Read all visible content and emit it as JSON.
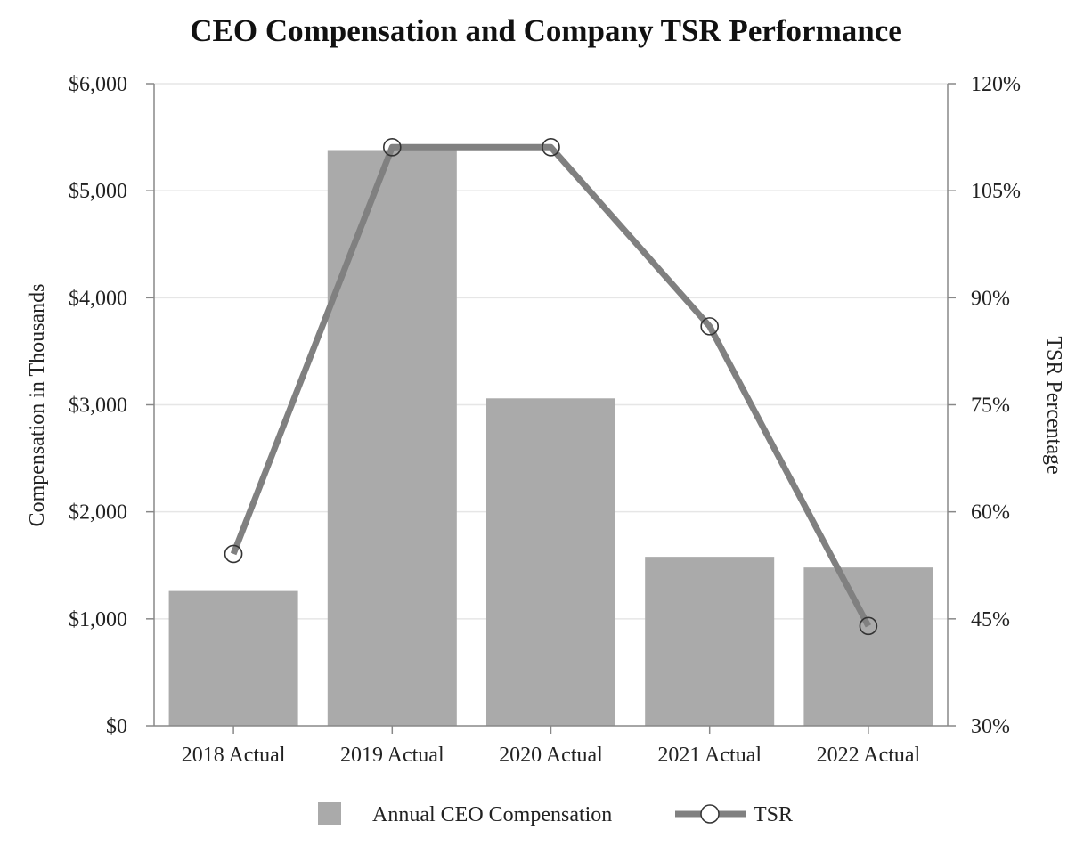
{
  "chart_data": {
    "type": "bar",
    "title": "CEO Compensation and Company TSR Performance",
    "categories": [
      "2018 Actual",
      "2019 Actual",
      "2020 Actual",
      "2021 Actual",
      "2022 Actual"
    ],
    "ylabel": "Compensation in Thousands",
    "y2label": "TSR Percentage",
    "ylim": [
      0,
      6000
    ],
    "y2lim": [
      30,
      120
    ],
    "yticks": [
      "$0",
      "$1,000",
      "$2,000",
      "$3,000",
      "$4,000",
      "$5,000",
      "$6,000"
    ],
    "ytick_values": [
      0,
      1000,
      2000,
      3000,
      4000,
      5000,
      6000
    ],
    "y2ticks": [
      "30%",
      "45%",
      "60%",
      "75%",
      "90%",
      "105%",
      "120%"
    ],
    "y2tick_values": [
      30,
      45,
      60,
      75,
      90,
      105,
      120
    ],
    "grid": true,
    "legend_position": "bottom",
    "series": [
      {
        "name": "Annual CEO Compensation",
        "type": "bar",
        "axis": "left",
        "color": "#aaaaaa",
        "values": [
          1260,
          5380,
          3060,
          1580,
          1480
        ]
      },
      {
        "name": "TSR",
        "type": "line",
        "axis": "right",
        "color": "#808080",
        "marker": "open-circle",
        "values": [
          54.1,
          111.1,
          111.1,
          86.0,
          44.0
        ]
      }
    ]
  }
}
